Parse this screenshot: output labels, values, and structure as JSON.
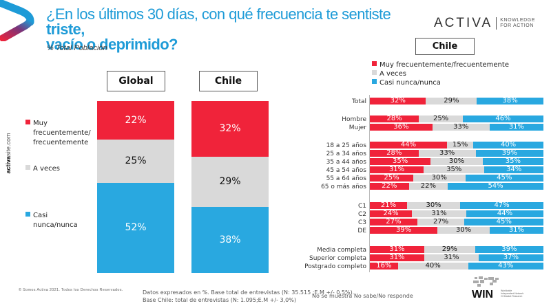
{
  "header": {
    "title_regular": "¿En los últimos 30 días, con qué frecuencia te sentiste ",
    "title_bold_1": "triste,",
    "title_bold_2": "vacío o deprimido?",
    "subtitle": "% Total Población"
  },
  "brand": {
    "name": "ACTIVA",
    "tagline_1": "KNOWLEDGE",
    "tagline_2": "FOR ACTION"
  },
  "side_url": {
    "bold": "activa",
    "rest": "site.com"
  },
  "colors": {
    "red": "#f0233a",
    "gray": "#d9d9d9",
    "blue": "#29a8e0",
    "title_blue": "#1e9bd7"
  },
  "legend": [
    {
      "label": "Muy frecuentemente/frecuentemente",
      "label_left_1": "Muy",
      "label_left_2": "frecuentemente/",
      "label_left_3": "frecuentemente",
      "color": "#f0233a"
    },
    {
      "label": "A veces",
      "color": "#d9d9d9"
    },
    {
      "label": "Casi nunca/nunca",
      "label_left_1": "Casi",
      "label_left_2": "nunca/nunca",
      "color": "#29a8e0"
    }
  ],
  "chart_data": [
    {
      "type": "bar",
      "stacked": true,
      "orientation": "vertical",
      "title": "",
      "categories": [
        "Global",
        "Chile"
      ],
      "series": [
        {
          "name": "Muy frecuentemente/frecuentemente",
          "values": [
            22,
            32
          ],
          "labels": [
            "22%",
            "32%"
          ]
        },
        {
          "name": "A veces",
          "values": [
            25,
            29
          ],
          "labels": [
            "25%",
            "29%"
          ]
        },
        {
          "name": "Casi nunca/nunca",
          "values": [
            52,
            38
          ],
          "labels": [
            "52%",
            "38%"
          ]
        }
      ],
      "legend_position": "left",
      "ylim": [
        0,
        100
      ]
    },
    {
      "type": "bar",
      "stacked": true,
      "orientation": "horizontal",
      "title": "Chile",
      "legend_position": "top",
      "categories": [
        "Total",
        "Hombre",
        "Mujer",
        "18 a 25 años",
        "25 a 34 años",
        "35 a 44 años",
        "45 a 54 años",
        "55 a 64 años",
        "65 o más años",
        "C1",
        "C2",
        "C3",
        "DE",
        "Media completa",
        "Superior completa",
        "Postgrado completo"
      ],
      "groups": [
        [
          0
        ],
        [
          1,
          2
        ],
        [
          3,
          4,
          5,
          6,
          7,
          8
        ],
        [
          9,
          10,
          11,
          12
        ],
        [
          13,
          14,
          15
        ]
      ],
      "series": [
        {
          "name": "Muy frecuentemente/frecuentemente",
          "values": [
            32,
            28,
            36,
            44,
            28,
            35,
            31,
            25,
            22,
            21,
            24,
            27,
            39,
            31,
            31,
            16
          ]
        },
        {
          "name": "A veces",
          "values": [
            29,
            25,
            33,
            15,
            33,
            30,
            35,
            30,
            22,
            30,
            31,
            27,
            30,
            29,
            31,
            40
          ]
        },
        {
          "name": "Casi nunca/nunca",
          "values": [
            38,
            46,
            31,
            40,
            39,
            35,
            34,
            45,
            54,
            47,
            44,
            45,
            31,
            39,
            37,
            43
          ]
        }
      ],
      "xlim": [
        0,
        100
      ]
    }
  ],
  "footer": {
    "copyright": "© Somos Activa 2021. Todos los Derechos Reservados.",
    "note_1": "Datos expresados en %. Base total de entrevistas (N: 35.515 ;E.M +/- 0,5%).",
    "note_2": "Base Chile: total de entrevistas (N: 1.095;E.M +/- 3,0%)",
    "no_response": "No se muestra No sabe/No responde",
    "win_name": "WIN",
    "win_tag": "Worldwide Independent Network Of Market Research"
  }
}
